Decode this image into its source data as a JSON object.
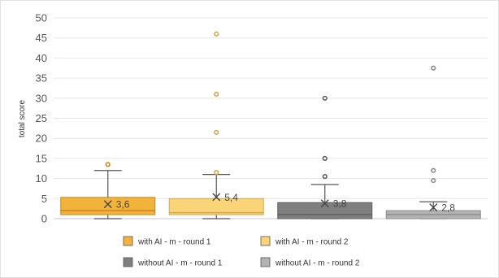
{
  "chart_data": {
    "type": "boxplot",
    "ylabel": "total score",
    "ylim": [
      0,
      50
    ],
    "yticks": [
      0,
      5,
      10,
      15,
      20,
      25,
      30,
      35,
      40,
      45,
      50
    ],
    "grid": "horizontal",
    "legend_position": "bottom",
    "series": [
      {
        "name": "with AI - m - round 1",
        "color": "#F2B33D",
        "stroke": "#C8871A",
        "min": 0,
        "q1": 1,
        "median": 2,
        "q3": 5.3,
        "whisker_high": 12,
        "mean": 3.6,
        "mean_label": "3,6",
        "outliers": [
          13.5
        ]
      },
      {
        "name": "with AI - m - round 2",
        "color": "#FBD47A",
        "stroke": "#D4A84A",
        "min": 0,
        "q1": 1,
        "median": 1.5,
        "q3": 5,
        "whisker_high": 11,
        "mean": 5.4,
        "mean_label": "5,4",
        "outliers": [
          11.5,
          21.5,
          31,
          46
        ]
      },
      {
        "name": "without AI - m - round 1",
        "color": "#7F7F7F",
        "stroke": "#5E5E5E",
        "min": 0,
        "q1": 0,
        "median": 1,
        "q3": 4,
        "whisker_high": 8.5,
        "mean": 3.8,
        "mean_label": "3,8",
        "outliers": [
          10.5,
          15,
          30
        ]
      },
      {
        "name": "without AI - m - round 2",
        "color": "#B3B3B3",
        "stroke": "#8C8C8C",
        "min": 0,
        "q1": 0,
        "median": 1,
        "q3": 2,
        "whisker_high": 4.2,
        "mean": 2.8,
        "mean_label": "2,8",
        "outliers": [
          9.5,
          12,
          37.5
        ]
      }
    ]
  }
}
